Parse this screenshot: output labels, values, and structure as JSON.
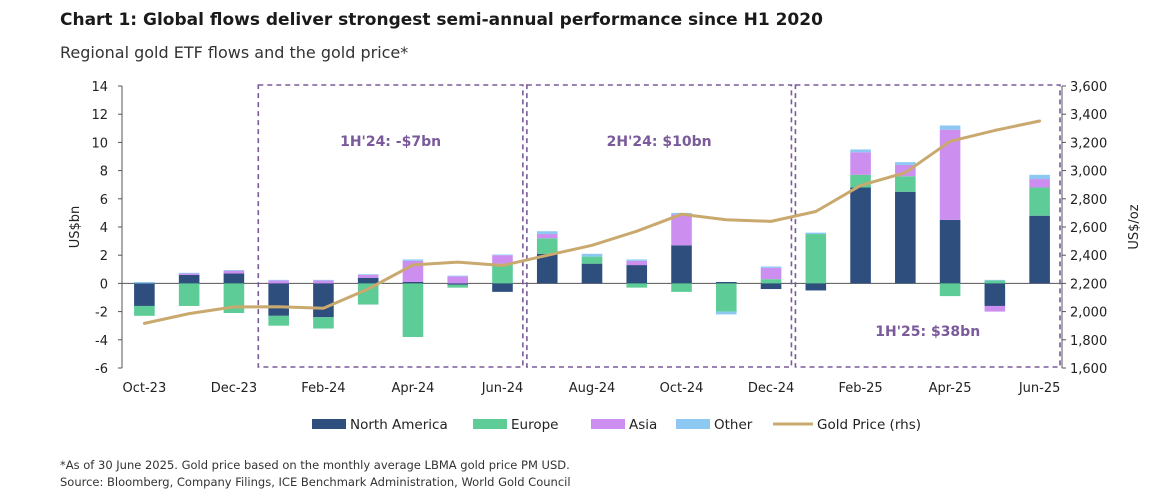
{
  "title": "Chart 1: Global flows deliver strongest semi-annual performance since H1 2020",
  "subtitle": "Regional gold ETF flows and the gold price*",
  "footnote": "*As of 30 June 2025. Gold price based on the monthly average LBMA gold price PM USD.",
  "source": "Source: Bloomberg, Company Filings, ICE Benchmark Administration, World Gold Council",
  "chart_data": {
    "type": "bar",
    "stacked": true,
    "categories": [
      "Oct-23",
      "Nov-23",
      "Dec-23",
      "Jan-24",
      "Feb-24",
      "Mar-24",
      "Apr-24",
      "May-24",
      "Jun-24",
      "Jul-24",
      "Aug-24",
      "Sep-24",
      "Oct-24",
      "Nov-24",
      "Dec-24",
      "Jan-25",
      "Feb-25",
      "Mar-25",
      "Apr-25",
      "May-25",
      "Jun-25"
    ],
    "x_tick_labels": [
      "Oct-23",
      "",
      "Dec-23",
      "",
      "Feb-24",
      "",
      "Apr-24",
      "",
      "Jun-24",
      "",
      "Aug-24",
      "",
      "Oct-24",
      "",
      "Dec-24",
      "",
      "Feb-25",
      "",
      "Apr-25",
      "",
      "Jun-25"
    ],
    "ylabel": "US$bn",
    "ylabel_right": "US$/oz",
    "ylim": [
      -6,
      14
    ],
    "yticks": [
      -6,
      -4,
      -2,
      0,
      2,
      4,
      6,
      8,
      10,
      12,
      14
    ],
    "y2lim": [
      1600,
      3600
    ],
    "y2ticks": [
      "1,600",
      "1,800",
      "2,000",
      "2,200",
      "2,400",
      "2,600",
      "2,800",
      "3,000",
      "3,200",
      "3,400",
      "3,600"
    ],
    "legend_position": "bottom",
    "series": [
      {
        "name": "North America",
        "color": "#2e4e7e",
        "values": [
          -1.6,
          0.6,
          0.7,
          -2.3,
          -2.4,
          0.4,
          0.1,
          -0.1,
          -0.6,
          2.1,
          1.4,
          1.3,
          2.7,
          0.1,
          -0.4,
          -0.5,
          6.8,
          6.5,
          4.5,
          -1.6,
          4.8
        ]
      },
      {
        "name": "Europe",
        "color": "#5ecc97",
        "values": [
          -0.7,
          -1.6,
          -2.1,
          -0.7,
          -0.8,
          -1.5,
          -3.8,
          -0.2,
          1.4,
          1.1,
          0.5,
          -0.3,
          -0.6,
          -2.0,
          0.3,
          3.5,
          0.9,
          1.1,
          -0.9,
          0.2,
          2.0
        ]
      },
      {
        "name": "Asia",
        "color": "#cc8ff0",
        "values": [
          0.0,
          0.1,
          0.2,
          0.2,
          0.2,
          0.2,
          1.5,
          0.5,
          0.6,
          0.3,
          0.0,
          0.3,
          2.2,
          0.0,
          0.8,
          0.0,
          1.6,
          0.8,
          6.4,
          -0.4,
          0.6
        ]
      },
      {
        "name": "Other",
        "color": "#8cc8f2",
        "values": [
          0.1,
          0.05,
          0.05,
          0.05,
          0.05,
          0.05,
          0.1,
          0.05,
          0.05,
          0.2,
          0.2,
          0.1,
          0.1,
          -0.2,
          0.1,
          0.1,
          0.2,
          0.2,
          0.3,
          0.05,
          0.3
        ]
      },
      {
        "name": "Gold Price (rhs)",
        "color": "#c9a96e",
        "axis": "right",
        "values": [
          1916,
          1986,
          2033,
          2034,
          2024,
          2160,
          2331,
          2351,
          2327,
          2399,
          2470,
          2570,
          2690,
          2652,
          2640,
          2710,
          2895,
          2985,
          3208,
          3285,
          3352
        ]
      }
    ],
    "annotations": [
      {
        "label": "1H'24: -$7bn",
        "color": "#7a5a9a"
      },
      {
        "label": "2H'24: $10bn",
        "color": "#7a5a9a"
      },
      {
        "label": "1H'25: $38bn",
        "color": "#7a5a9a"
      }
    ],
    "annotation_box_color": "#7a5a9a"
  }
}
